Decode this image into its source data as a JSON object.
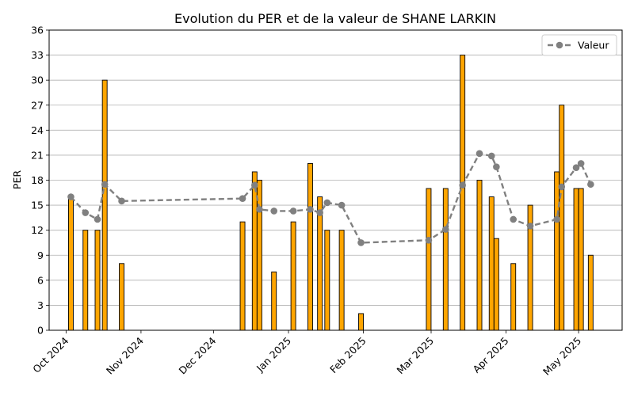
{
  "chart_data": {
    "type": "bar+line",
    "title": "Evolution du PER et de la valeur de SHANE LARKIN",
    "xlabel": "",
    "ylabel": "PER",
    "ylim": [
      0,
      36
    ],
    "yticks": [
      0,
      3,
      6,
      9,
      12,
      15,
      18,
      21,
      24,
      27,
      30,
      33,
      36
    ],
    "xlim": [
      "2024-09-24",
      "2025-05-19"
    ],
    "xticks": [
      {
        "date": "2024-10-01",
        "label": "Oct 2024"
      },
      {
        "date": "2024-11-01",
        "label": "Nov 2024"
      },
      {
        "date": "2024-12-01",
        "label": "Dec 2024"
      },
      {
        "date": "2025-01-01",
        "label": "Jan 2025"
      },
      {
        "date": "2025-02-01",
        "label": "Feb 2025"
      },
      {
        "date": "2025-03-01",
        "label": "Mar 2025"
      },
      {
        "date": "2025-04-01",
        "label": "Apr 2025"
      },
      {
        "date": "2025-05-01",
        "label": "May 2025"
      }
    ],
    "grid": "horizontal",
    "legend": {
      "position": "top-right",
      "entries": [
        "Valeur"
      ]
    },
    "bar_color": "#FFA500",
    "line_color": "#808080",
    "bars": [
      {
        "date": "2024-10-03",
        "value": 16
      },
      {
        "date": "2024-10-09",
        "value": 12
      },
      {
        "date": "2024-10-14",
        "value": 12
      },
      {
        "date": "2024-10-17",
        "value": 30
      },
      {
        "date": "2024-10-24",
        "value": 8
      },
      {
        "date": "2024-12-13",
        "value": 13
      },
      {
        "date": "2024-12-18",
        "value": 19
      },
      {
        "date": "2024-12-20",
        "value": 18
      },
      {
        "date": "2024-12-26",
        "value": 7
      },
      {
        "date": "2025-01-03",
        "value": 13
      },
      {
        "date": "2025-01-10",
        "value": 20
      },
      {
        "date": "2025-01-14",
        "value": 16
      },
      {
        "date": "2025-01-17",
        "value": 12
      },
      {
        "date": "2025-01-23",
        "value": 12
      },
      {
        "date": "2025-01-31",
        "value": 2
      },
      {
        "date": "2025-02-28",
        "value": 17
      },
      {
        "date": "2025-03-07",
        "value": 17
      },
      {
        "date": "2025-03-14",
        "value": 33
      },
      {
        "date": "2025-03-21",
        "value": 18
      },
      {
        "date": "2025-03-26",
        "value": 16
      },
      {
        "date": "2025-03-28",
        "value": 11
      },
      {
        "date": "2025-04-04",
        "value": 8
      },
      {
        "date": "2025-04-11",
        "value": 15
      },
      {
        "date": "2025-04-22",
        "value": 19
      },
      {
        "date": "2025-04-24",
        "value": 27
      },
      {
        "date": "2025-04-30",
        "value": 17
      },
      {
        "date": "2025-05-02",
        "value": 17
      },
      {
        "date": "2025-05-06",
        "value": 9
      }
    ],
    "series": [
      {
        "name": "Valeur",
        "points": [
          {
            "date": "2024-10-03",
            "value": 16.0
          },
          {
            "date": "2024-10-09",
            "value": 14.1
          },
          {
            "date": "2024-10-14",
            "value": 13.3
          },
          {
            "date": "2024-10-17",
            "value": 17.5
          },
          {
            "date": "2024-10-24",
            "value": 15.5
          },
          {
            "date": "2024-12-13",
            "value": 15.8
          },
          {
            "date": "2024-12-18",
            "value": 17.4
          },
          {
            "date": "2024-12-20",
            "value": 14.5
          },
          {
            "date": "2024-12-26",
            "value": 14.3
          },
          {
            "date": "2025-01-03",
            "value": 14.3
          },
          {
            "date": "2025-01-10",
            "value": 14.5
          },
          {
            "date": "2025-01-14",
            "value": 14.1
          },
          {
            "date": "2025-01-17",
            "value": 15.3
          },
          {
            "date": "2025-01-23",
            "value": 15.0
          },
          {
            "date": "2025-01-31",
            "value": 10.5
          },
          {
            "date": "2025-02-28",
            "value": 10.8
          },
          {
            "date": "2025-03-07",
            "value": 12.1
          },
          {
            "date": "2025-03-14",
            "value": 17.4
          },
          {
            "date": "2025-03-21",
            "value": 21.2
          },
          {
            "date": "2025-03-26",
            "value": 20.9
          },
          {
            "date": "2025-03-28",
            "value": 19.6
          },
          {
            "date": "2025-04-04",
            "value": 13.3
          },
          {
            "date": "2025-04-11",
            "value": 12.5
          },
          {
            "date": "2025-04-22",
            "value": 13.3
          },
          {
            "date": "2025-04-24",
            "value": 17.2
          },
          {
            "date": "2025-04-30",
            "value": 19.5
          },
          {
            "date": "2025-05-02",
            "value": 20.0
          },
          {
            "date": "2025-05-06",
            "value": 17.5
          }
        ]
      }
    ]
  }
}
